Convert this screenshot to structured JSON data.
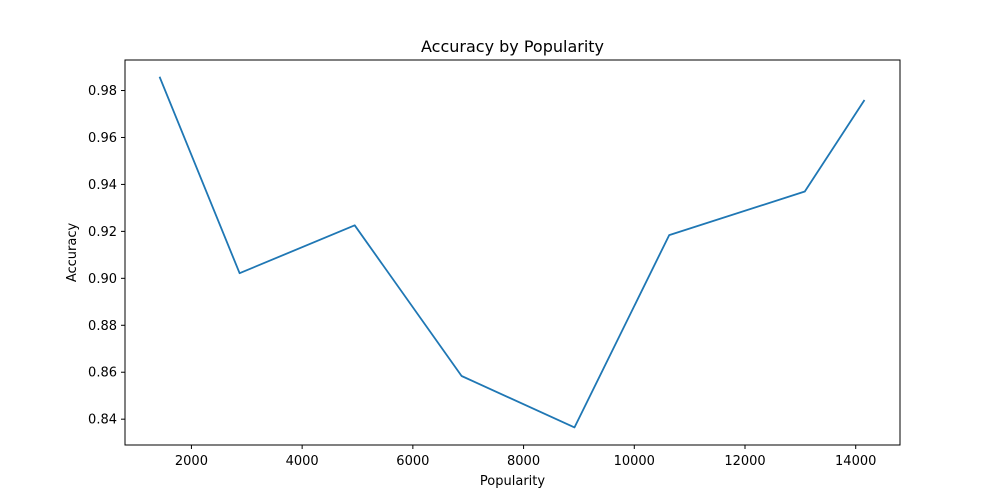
{
  "chart_data": {
    "type": "line",
    "title": "Accuracy by Popularity",
    "xlabel": "Popularity",
    "ylabel": "Accuracy",
    "xlim": [
      800,
      14800
    ],
    "ylim": [
      0.829,
      0.993
    ],
    "xticks": [
      2000,
      4000,
      6000,
      8000,
      10000,
      12000,
      14000
    ],
    "yticks": [
      0.84,
      0.86,
      0.88,
      0.9,
      0.92,
      0.94,
      0.96,
      0.98
    ],
    "xtick_labels": [
      "2000",
      "4000",
      "6000",
      "8000",
      "10000",
      "12000",
      "14000"
    ],
    "ytick_labels": [
      "0.84",
      "0.86",
      "0.88",
      "0.90",
      "0.92",
      "0.94",
      "0.96",
      "0.98"
    ],
    "grid": false,
    "legend": "none",
    "series": [
      {
        "color": "#1f77b4",
        "x": [
          1430,
          2870,
          4950,
          6880,
          8920,
          10630,
          13080,
          14150
        ],
        "y": [
          0.9855,
          0.9022,
          0.9226,
          0.8584,
          0.8365,
          0.9184,
          0.937,
          0.9756
        ]
      }
    ]
  }
}
